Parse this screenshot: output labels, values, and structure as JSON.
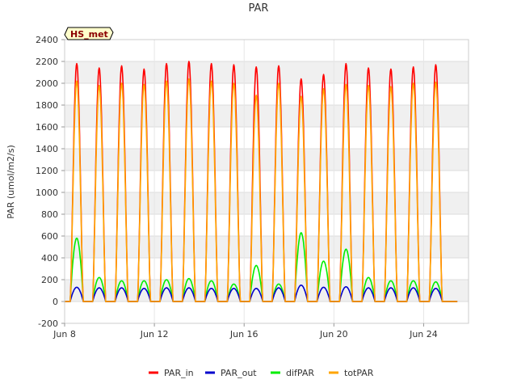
{
  "chart_data": {
    "type": "line",
    "title": "PAR",
    "ylabel": "PAR (umol/m2/s)",
    "xlabel": "",
    "badge": "HS_met",
    "ylim": [
      -200,
      2400
    ],
    "yticks": [
      -200,
      0,
      200,
      400,
      600,
      800,
      1000,
      1200,
      1400,
      1600,
      1800,
      2000,
      2200,
      2400
    ],
    "xlim": [
      8,
      26
    ],
    "xticks": [
      {
        "value": 8,
        "label": "Jun 8"
      },
      {
        "value": 12,
        "label": "Jun 12"
      },
      {
        "value": 16,
        "label": "Jun 16"
      },
      {
        "value": 20,
        "label": "Jun 20"
      },
      {
        "value": 24,
        "label": "Jun 24"
      }
    ],
    "days": [
      8,
      9,
      10,
      11,
      12,
      13,
      14,
      15,
      16,
      17,
      18,
      19,
      20,
      21,
      22,
      23,
      24,
      25
    ],
    "series": [
      {
        "name": "PAR_in",
        "color": "#ff0000",
        "daily_peak": [
          2180,
          2140,
          2160,
          2130,
          2180,
          2200,
          2180,
          2170,
          2150,
          2160,
          2040,
          2080,
          2180,
          2140,
          2130,
          2150,
          2170,
          0
        ]
      },
      {
        "name": "PAR_out",
        "color": "#0000cc",
        "daily_peak": [
          130,
          125,
          125,
          120,
          125,
          125,
          120,
          120,
          120,
          125,
          150,
          130,
          135,
          125,
          125,
          125,
          120,
          0
        ]
      },
      {
        "name": "difPAR",
        "color": "#00ee00",
        "daily_peak": [
          580,
          220,
          190,
          190,
          200,
          210,
          190,
          160,
          330,
          160,
          630,
          370,
          480,
          220,
          190,
          190,
          180,
          0
        ]
      },
      {
        "name": "totPAR",
        "color": "#ffa500",
        "daily_peak": [
          2020,
          1980,
          2000,
          1990,
          2020,
          2040,
          2020,
          2000,
          1890,
          2000,
          1880,
          1950,
          1990,
          1980,
          1970,
          2000,
          2010,
          0
        ]
      }
    ]
  }
}
